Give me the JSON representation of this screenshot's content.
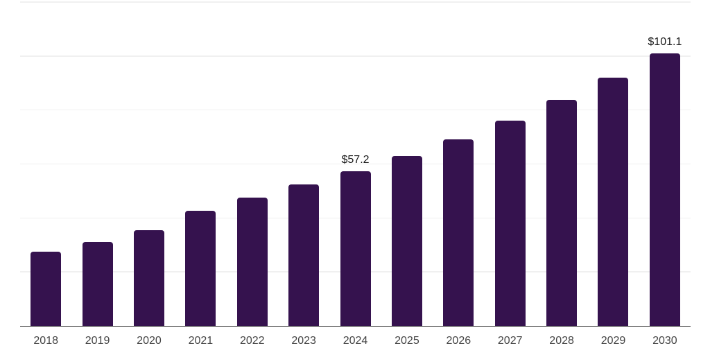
{
  "chart_data": {
    "type": "bar",
    "title": "",
    "categories": [
      "2018",
      "2019",
      "2020",
      "2021",
      "2022",
      "2023",
      "2024",
      "2025",
      "2026",
      "2027",
      "2028",
      "2029",
      "2030"
    ],
    "values": [
      27.6,
      31.0,
      35.5,
      42.7,
      47.5,
      52.4,
      57.2,
      62.9,
      69.2,
      76.1,
      83.7,
      92.1,
      101.1
    ],
    "data_labels": {
      "2024": "$57.2",
      "2030": "$101.1"
    },
    "xlabel": "",
    "ylabel": "",
    "ylim": [
      0,
      120
    ],
    "gridline_step": 20,
    "grid": true,
    "legend": "none",
    "y_tick_labels_shown": false,
    "colors": {
      "bar": "#35124E",
      "axis_line": "#333333",
      "gridline": "#f0f0f0",
      "x_tick_label": "#444444",
      "data_label": "#1a1a1a",
      "background": "#ffffff"
    }
  }
}
